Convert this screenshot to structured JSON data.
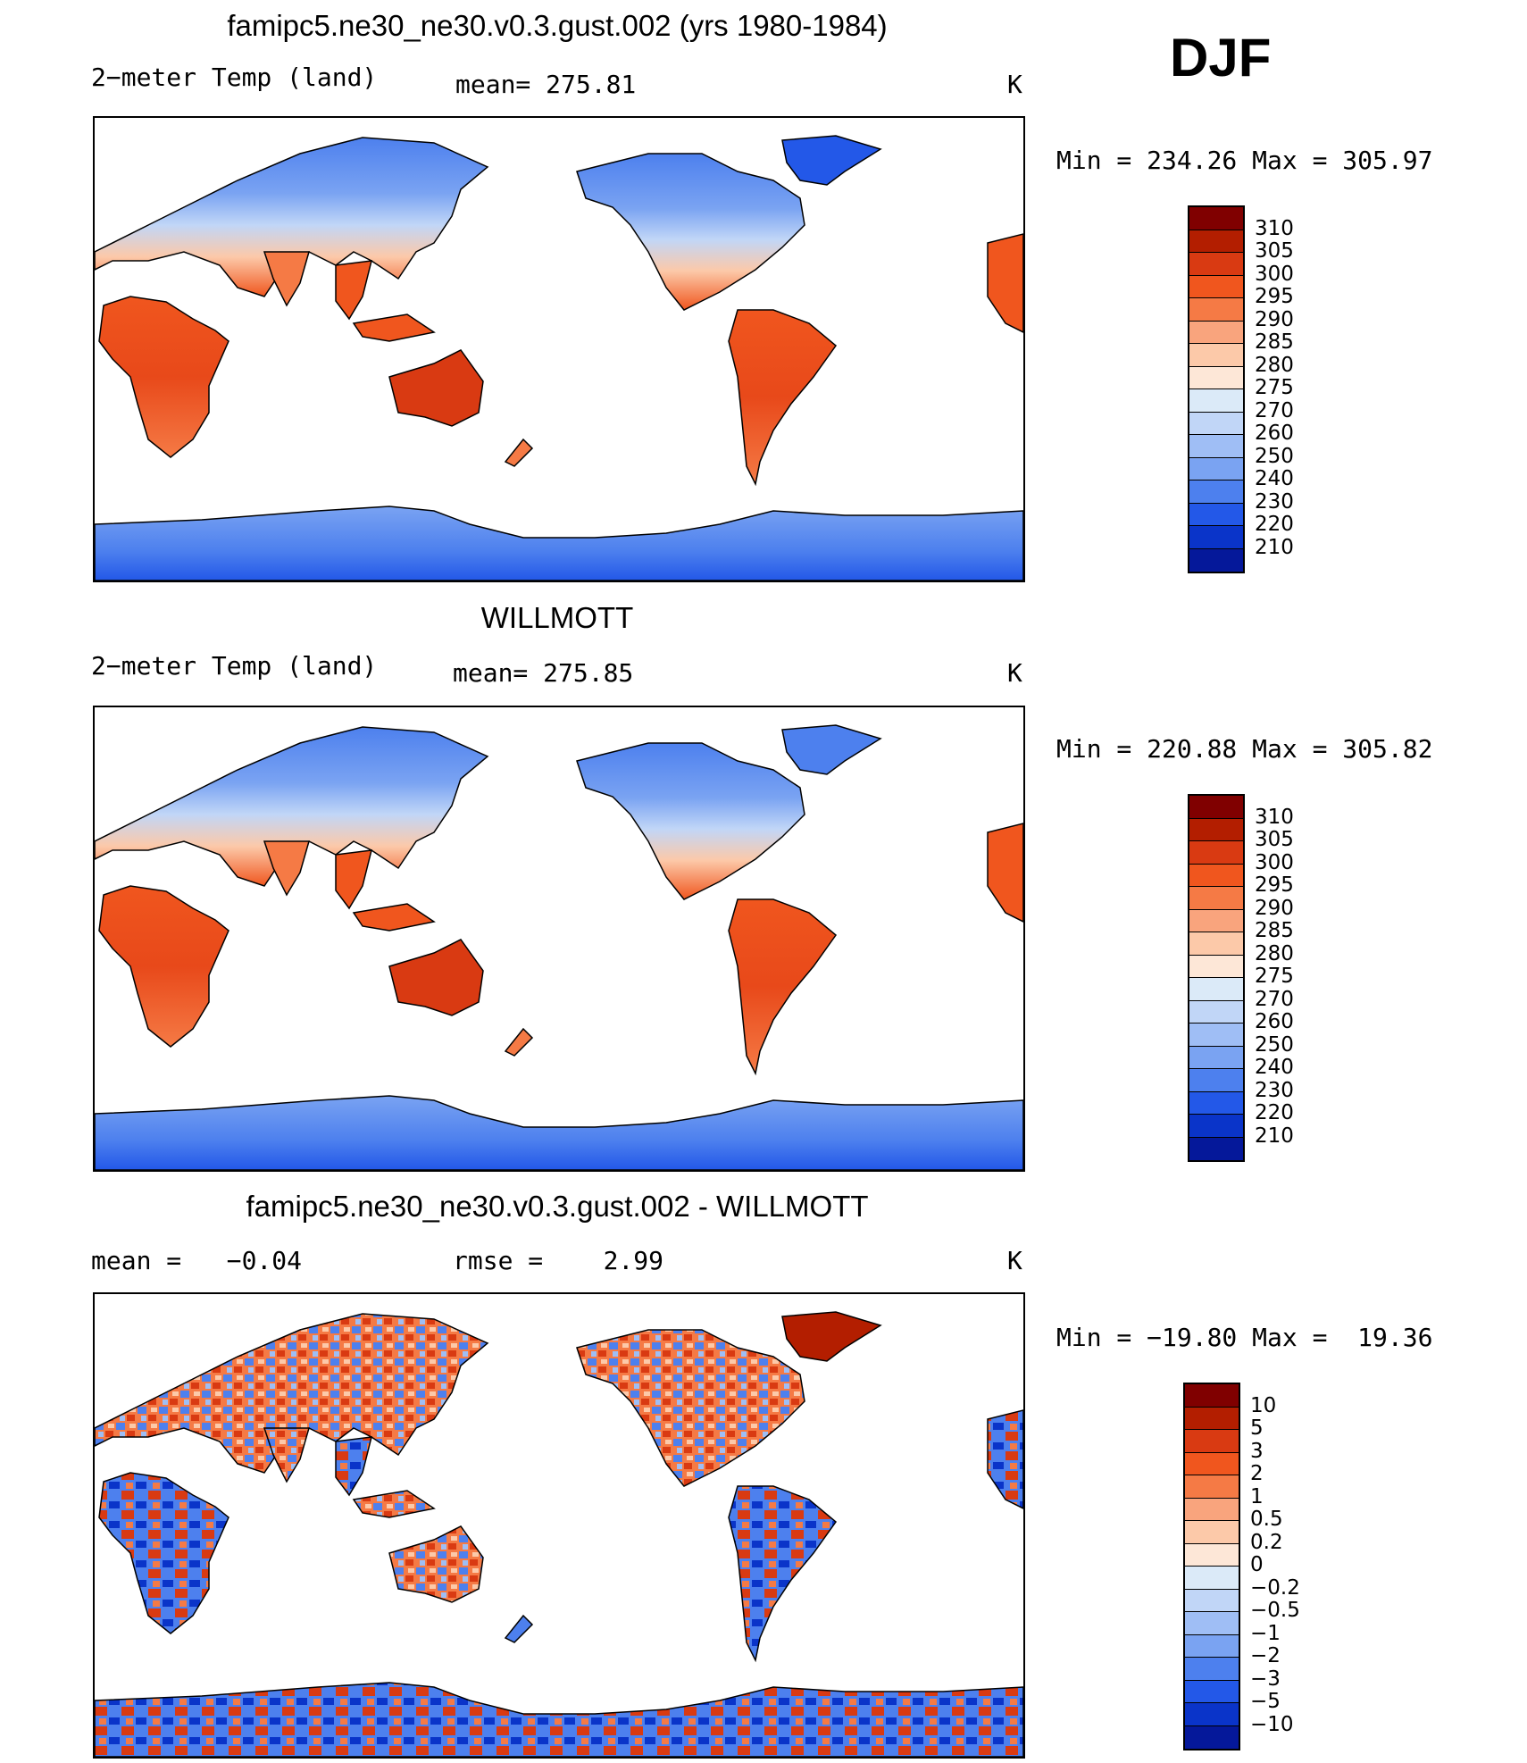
{
  "season": "DJF",
  "panels": [
    {
      "title": "famipc5.ne30_ne30.v0.3.gust.002 (yrs 1980-1984)",
      "left_label": "2−meter Temp (land)",
      "mid_label": "mean= 275.81",
      "units": "K",
      "minmax": "Min = 234.26 Max = 305.97",
      "scale": "abs",
      "colorbar": {
        "labels": [
          "310",
          "305",
          "300",
          "295",
          "290",
          "285",
          "280",
          "275",
          "270",
          "260",
          "250",
          "240",
          "230",
          "220",
          "210"
        ],
        "colors": [
          "#800000",
          "#b31e00",
          "#d93a12",
          "#f0561e",
          "#f57a45",
          "#f9a47d",
          "#fcc9a9",
          "#fde7d7",
          "#dbeaf8",
          "#c1d6f7",
          "#9fbef5",
          "#7aa3f2",
          "#4d80ee",
          "#2358e8",
          "#0a34c9",
          "#05189a"
        ]
      }
    },
    {
      "title": "WILLMOTT",
      "left_label": "2−meter Temp (land)",
      "mid_label": "mean= 275.85",
      "units": "K",
      "minmax": "Min = 220.88 Max = 305.82",
      "scale": "abs",
      "colorbar": {
        "labels": [
          "310",
          "305",
          "300",
          "295",
          "290",
          "285",
          "280",
          "275",
          "270",
          "260",
          "250",
          "240",
          "230",
          "220",
          "210"
        ],
        "colors": [
          "#800000",
          "#b31e00",
          "#d93a12",
          "#f0561e",
          "#f57a45",
          "#f9a47d",
          "#fcc9a9",
          "#fde7d7",
          "#dbeaf8",
          "#c1d6f7",
          "#9fbef5",
          "#7aa3f2",
          "#4d80ee",
          "#2358e8",
          "#0a34c9",
          "#05189a"
        ]
      }
    },
    {
      "title": "famipc5.ne30_ne30.v0.3.gust.002 - WILLMOTT",
      "left_label": "mean =   −0.04",
      "mid_label": "rmse =    2.99",
      "units": "K",
      "minmax": "Min = −19.80 Max =  19.36",
      "scale": "diff",
      "colorbar": {
        "labels": [
          "10",
          "5",
          "3",
          "2",
          "1",
          "0.5",
          "0.2",
          "0",
          "−0.2",
          "−0.5",
          "−1",
          "−2",
          "−3",
          "−5",
          "−10"
        ],
        "colors": [
          "#800000",
          "#b31e00",
          "#d93a12",
          "#f0561e",
          "#f57a45",
          "#f9a47d",
          "#fcc9a9",
          "#fde7d7",
          "#dbeaf8",
          "#c1d6f7",
          "#9fbef5",
          "#7aa3f2",
          "#4d80ee",
          "#2358e8",
          "#0a34c9",
          "#05189a"
        ]
      }
    }
  ]
}
